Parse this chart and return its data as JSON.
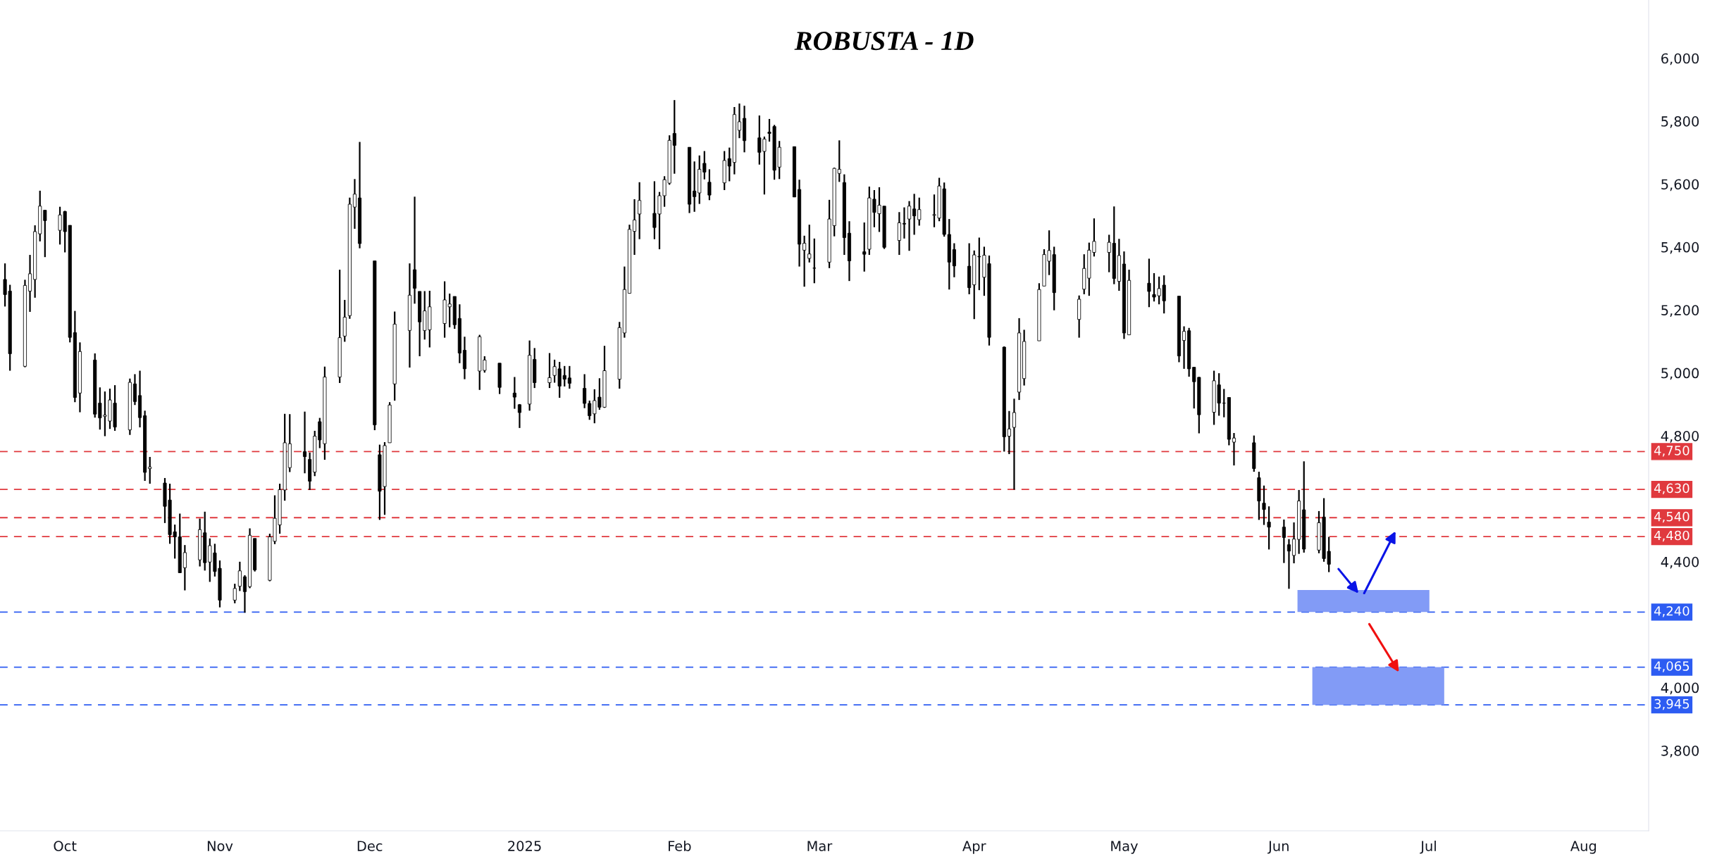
{
  "chart_data": {
    "type": "candlestick",
    "title": "ROBUSTA - 1D",
    "x": [
      "2024-09-19",
      "2024-09-20",
      "2024-09-23",
      "2024-09-24",
      "2024-09-25",
      "2024-09-26",
      "2024-09-27",
      "2024-09-30",
      "2024-10-01",
      "2024-10-02",
      "2024-10-03",
      "2024-10-04",
      "2024-10-07",
      "2024-10-08",
      "2024-10-09",
      "2024-10-10",
      "2024-10-11",
      "2024-10-14",
      "2024-10-15",
      "2024-10-16",
      "2024-10-17",
      "2024-10-18",
      "2024-10-21",
      "2024-10-22",
      "2024-10-23",
      "2024-10-24",
      "2024-10-25",
      "2024-10-28",
      "2024-10-29",
      "2024-10-30",
      "2024-10-31",
      "2024-11-01",
      "2024-11-04",
      "2024-11-05",
      "2024-11-06",
      "2024-11-07",
      "2024-11-08",
      "2024-11-11",
      "2024-11-12",
      "2024-11-13",
      "2024-11-14",
      "2024-11-15",
      "2024-11-18",
      "2024-11-19",
      "2024-11-20",
      "2024-11-21",
      "2024-11-22",
      "2024-11-25",
      "2024-11-26",
      "2024-11-27",
      "2024-11-28",
      "2024-11-29",
      "2024-12-02",
      "2024-12-03",
      "2024-12-04",
      "2024-12-05",
      "2024-12-06",
      "2024-12-09",
      "2024-12-10",
      "2024-12-11",
      "2024-12-12",
      "2024-12-13",
      "2024-12-16",
      "2024-12-17",
      "2024-12-18",
      "2024-12-19",
      "2024-12-20",
      "2024-12-23",
      "2024-12-24",
      "2024-12-27",
      "2024-12-30",
      "2024-12-31",
      "2025-01-02",
      "2025-01-03",
      "2025-01-06",
      "2025-01-07",
      "2025-01-08",
      "2025-01-09",
      "2025-01-10",
      "2025-01-13",
      "2025-01-14",
      "2025-01-15",
      "2025-01-16",
      "2025-01-17",
      "2025-01-20",
      "2025-01-21",
      "2025-01-22",
      "2025-01-23",
      "2025-01-24",
      "2025-01-27",
      "2025-01-28",
      "2025-01-29",
      "2025-01-30",
      "2025-01-31",
      "2025-02-03",
      "2025-02-04",
      "2025-02-05",
      "2025-02-06",
      "2025-02-07",
      "2025-02-10",
      "2025-02-11",
      "2025-02-12",
      "2025-02-13",
      "2025-02-14",
      "2025-02-17",
      "2025-02-18",
      "2025-02-19",
      "2025-02-20",
      "2025-02-21",
      "2025-02-24",
      "2025-02-25",
      "2025-02-26",
      "2025-02-27",
      "2025-02-28",
      "2025-03-03",
      "2025-03-04",
      "2025-03-05",
      "2025-03-06",
      "2025-03-07",
      "2025-03-10",
      "2025-03-11",
      "2025-03-12",
      "2025-03-13",
      "2025-03-14",
      "2025-03-17",
      "2025-03-18",
      "2025-03-19",
      "2025-03-20",
      "2025-03-21",
      "2025-03-24",
      "2025-03-25",
      "2025-03-26",
      "2025-03-27",
      "2025-03-28",
      "2025-03-31",
      "2025-04-01",
      "2025-04-02",
      "2025-04-03",
      "2025-04-04",
      "2025-04-07",
      "2025-04-08",
      "2025-04-09",
      "2025-04-10",
      "2025-04-11",
      "2025-04-14",
      "2025-04-15",
      "2025-04-16",
      "2025-04-17",
      "2025-04-22",
      "2025-04-23",
      "2025-04-24",
      "2025-04-25",
      "2025-04-28",
      "2025-04-29",
      "2025-04-30",
      "2025-05-01",
      "2025-05-02",
      "2025-05-06",
      "2025-05-07",
      "2025-05-08",
      "2025-05-09",
      "2025-05-12",
      "2025-05-13",
      "2025-05-14",
      "2025-05-15",
      "2025-05-16",
      "2025-05-19",
      "2025-05-20",
      "2025-05-21",
      "2025-05-22",
      "2025-05-23",
      "2025-05-27",
      "2025-05-28",
      "2025-05-29",
      "2025-05-30",
      "2025-06-02",
      "2025-06-03",
      "2025-06-04",
      "2025-06-05",
      "2025-06-06",
      "2025-06-09",
      "2025-06-10",
      "2025-06-11"
    ],
    "ohlc": [
      [
        5297,
        5348,
        5211,
        5249
      ],
      [
        5260,
        5280,
        5007,
        5061
      ],
      [
        5021,
        5296,
        5018,
        5278
      ],
      [
        5260,
        5375,
        5194,
        5315
      ],
      [
        5297,
        5469,
        5239,
        5449
      ],
      [
        5442,
        5579,
        5418,
        5530
      ],
      [
        5517,
        5518,
        5368,
        5484
      ],
      [
        5453,
        5528,
        5408,
        5502
      ],
      [
        5513,
        5515,
        5383,
        5449
      ],
      [
        5469,
        5469,
        5097,
        5113
      ],
      [
        5128,
        5197,
        4907,
        4922
      ],
      [
        4936,
        5097,
        4875,
        5068
      ],
      [
        5041,
        5062,
        4858,
        4869
      ],
      [
        4904,
        4954,
        4820,
        4857
      ],
      [
        4862,
        4941,
        4799,
        4866
      ],
      [
        4847,
        4950,
        4822,
        4914
      ],
      [
        4904,
        4961,
        4816,
        4828
      ],
      [
        4819,
        4982,
        4803,
        4970
      ],
      [
        4965,
        4996,
        4898,
        4909
      ],
      [
        4928,
        5007,
        4827,
        4858
      ],
      [
        4864,
        4880,
        4657,
        4684
      ],
      [
        4696,
        4733,
        4648,
        4701
      ],
      [
        4650,
        4666,
        4523,
        4576
      ],
      [
        4596,
        4648,
        4457,
        4486
      ],
      [
        4495,
        4518,
        4410,
        4479
      ],
      [
        4479,
        4553,
        4365,
        4365
      ],
      [
        4381,
        4453,
        4309,
        4429
      ],
      [
        4406,
        4537,
        4385,
        4502
      ],
      [
        4492,
        4559,
        4372,
        4397
      ],
      [
        4399,
        4474,
        4336,
        4451
      ],
      [
        4428,
        4457,
        4353,
        4369
      ],
      [
        4379,
        4404,
        4255,
        4278
      ],
      [
        4278,
        4330,
        4268,
        4315
      ],
      [
        4322,
        4400,
        4307,
        4371
      ],
      [
        4352,
        4357,
        4238,
        4305
      ],
      [
        4321,
        4506,
        4316,
        4484
      ],
      [
        4474,
        4474,
        4369,
        4374
      ],
      [
        4341,
        4489,
        4338,
        4479
      ],
      [
        4465,
        4611,
        4456,
        4538
      ],
      [
        4517,
        4648,
        4489,
        4629
      ],
      [
        4628,
        4870,
        4594,
        4778
      ],
      [
        4699,
        4869,
        4685,
        4775
      ],
      [
        4750,
        4877,
        4681,
        4734
      ],
      [
        4725,
        4747,
        4628,
        4656
      ],
      [
        4685,
        4816,
        4672,
        4799
      ],
      [
        4845,
        4857,
        4761,
        4787
      ],
      [
        4775,
        5020,
        4724,
        4987
      ],
      [
        4987,
        5328,
        4968,
        5112
      ],
      [
        5117,
        5232,
        5099,
        5177
      ],
      [
        5182,
        5557,
        5172,
        5536
      ],
      [
        5527,
        5616,
        5458,
        5568
      ],
      [
        5556,
        5734,
        5396,
        5411
      ],
      [
        5356,
        5356,
        4818,
        4835
      ],
      [
        4740,
        4772,
        4533,
        4624
      ],
      [
        4639,
        4780,
        4549,
        4769
      ],
      [
        4778,
        4907,
        4778,
        4898
      ],
      [
        4965,
        5195,
        4912,
        5155
      ],
      [
        5135,
        5348,
        5017,
        5247
      ],
      [
        5328,
        5560,
        5220,
        5269
      ],
      [
        5259,
        5259,
        5053,
        5162
      ],
      [
        5135,
        5260,
        5106,
        5197
      ],
      [
        5137,
        5261,
        5081,
        5210
      ],
      [
        5157,
        5291,
        5112,
        5232
      ],
      [
        5210,
        5252,
        5145,
        5219
      ],
      [
        5243,
        5243,
        5140,
        5153
      ],
      [
        5173,
        5218,
        5031,
        5063
      ],
      [
        5072,
        5115,
        4980,
        5013
      ],
      [
        5006,
        5121,
        4946,
        5115
      ],
      [
        5008,
        5053,
        5001,
        5041
      ],
      [
        5031,
        5031,
        4933,
        4954
      ],
      [
        4936,
        4987,
        4886,
        4923
      ],
      [
        4899,
        4901,
        4825,
        4874
      ],
      [
        4901,
        5103,
        4880,
        5056
      ],
      [
        5043,
        5079,
        4952,
        4969
      ],
      [
        4969,
        5063,
        4952,
        4985
      ],
      [
        4992,
        5042,
        4969,
        5020
      ],
      [
        5013,
        5035,
        4921,
        4958
      ],
      [
        4992,
        5022,
        4957,
        4980
      ],
      [
        4984,
        5022,
        4950,
        4967
      ],
      [
        4951,
        4996,
        4888,
        4903
      ],
      [
        4903,
        4912,
        4851,
        4864
      ],
      [
        4870,
        4948,
        4840,
        4912
      ],
      [
        4923,
        4983,
        4883,
        4891
      ],
      [
        4891,
        5086,
        4889,
        5007
      ],
      [
        4980,
        5162,
        4950,
        5144
      ],
      [
        5127,
        5338,
        5112,
        5265
      ],
      [
        5253,
        5471,
        5252,
        5456
      ],
      [
        5450,
        5552,
        5375,
        5486
      ],
      [
        5505,
        5606,
        5425,
        5548
      ],
      [
        5507,
        5609,
        5425,
        5462
      ],
      [
        5505,
        5575,
        5393,
        5563
      ],
      [
        5563,
        5625,
        5528,
        5614
      ],
      [
        5603,
        5755,
        5598,
        5739
      ],
      [
        5761,
        5867,
        5633,
        5723
      ],
      [
        5717,
        5717,
        5508,
        5536
      ],
      [
        5578,
        5672,
        5512,
        5560
      ],
      [
        5572,
        5691,
        5537,
        5647
      ],
      [
        5666,
        5705,
        5615,
        5638
      ],
      [
        5606,
        5647,
        5549,
        5565
      ],
      [
        5604,
        5705,
        5581,
        5675
      ],
      [
        5681,
        5716,
        5609,
        5657
      ],
      [
        5669,
        5845,
        5631,
        5821
      ],
      [
        5771,
        5856,
        5746,
        5798
      ],
      [
        5809,
        5849,
        5701,
        5738
      ],
      [
        5747,
        5818,
        5662,
        5701
      ],
      [
        5704,
        5751,
        5567,
        5743
      ],
      [
        5765,
        5807,
        5735,
        5761
      ],
      [
        5783,
        5788,
        5614,
        5644
      ],
      [
        5654,
        5737,
        5616,
        5717
      ],
      [
        5719,
        5719,
        5559,
        5559
      ],
      [
        5583,
        5614,
        5338,
        5409
      ],
      [
        5390,
        5436,
        5274,
        5412
      ],
      [
        5364,
        5471,
        5351,
        5378
      ],
      [
        5333,
        5427,
        5285,
        5333
      ],
      [
        5352,
        5550,
        5333,
        5489
      ],
      [
        5468,
        5652,
        5434,
        5650
      ],
      [
        5634,
        5739,
        5607,
        5647
      ],
      [
        5605,
        5631,
        5375,
        5430
      ],
      [
        5444,
        5482,
        5292,
        5356
      ],
      [
        5385,
        5478,
        5322,
        5377
      ],
      [
        5393,
        5592,
        5375,
        5556
      ],
      [
        5552,
        5581,
        5463,
        5510
      ],
      [
        5506,
        5590,
        5448,
        5533
      ],
      [
        5530,
        5530,
        5394,
        5399
      ],
      [
        5421,
        5511,
        5375,
        5477
      ],
      [
        5475,
        5526,
        5427,
        5473
      ],
      [
        5489,
        5546,
        5388,
        5530
      ],
      [
        5521,
        5569,
        5439,
        5499
      ],
      [
        5487,
        5557,
        5468,
        5519
      ],
      [
        5501,
        5567,
        5463,
        5503
      ],
      [
        5492,
        5620,
        5482,
        5594
      ],
      [
        5585,
        5605,
        5433,
        5440
      ],
      [
        5440,
        5489,
        5265,
        5352
      ],
      [
        5392,
        5412,
        5304,
        5340
      ],
      [
        5339,
        5412,
        5250,
        5271
      ],
      [
        5280,
        5389,
        5171,
        5375
      ],
      [
        5370,
        5430,
        5263,
        5369
      ],
      [
        5304,
        5401,
        5245,
        5374
      ],
      [
        5347,
        5373,
        5087,
        5113
      ],
      [
        5082,
        5084,
        4750,
        4797
      ],
      [
        4799,
        4879,
        4742,
        4822
      ],
      [
        4827,
        4918,
        4629,
        4874
      ],
      [
        4939,
        5174,
        4914,
        5127
      ],
      [
        4982,
        5137,
        4960,
        5100
      ],
      [
        5102,
        5285,
        5102,
        5265
      ],
      [
        5276,
        5393,
        5276,
        5376
      ],
      [
        5355,
        5453,
        5311,
        5389
      ],
      [
        5376,
        5401,
        5199,
        5255
      ],
      [
        5170,
        5246,
        5112,
        5234
      ],
      [
        5266,
        5377,
        5250,
        5332
      ],
      [
        5301,
        5414,
        5245,
        5390
      ],
      [
        5383,
        5491,
        5370,
        5418
      ],
      [
        5383,
        5439,
        5320,
        5415
      ],
      [
        5412,
        5529,
        5282,
        5300
      ],
      [
        5291,
        5426,
        5261,
        5373
      ],
      [
        5346,
        5386,
        5108,
        5127
      ],
      [
        5121,
        5328,
        5121,
        5294
      ],
      [
        5285,
        5363,
        5209,
        5259
      ],
      [
        5249,
        5317,
        5227,
        5241
      ],
      [
        5245,
        5306,
        5218,
        5268
      ],
      [
        5279,
        5310,
        5189,
        5229
      ],
      [
        5244,
        5244,
        5034,
        5054
      ],
      [
        5103,
        5148,
        5013,
        5132
      ],
      [
        5134,
        5143,
        4988,
        5013
      ],
      [
        5018,
        5018,
        4887,
        4972
      ],
      [
        4986,
        4987,
        4808,
        4867
      ],
      [
        4875,
        5007,
        4835,
        4975
      ],
      [
        4962,
        4999,
        4864,
        4904
      ],
      [
        4904,
        4949,
        4859,
        4904
      ],
      [
        4922,
        4922,
        4770,
        4789
      ],
      [
        4780,
        4809,
        4706,
        4793
      ],
      [
        4778,
        4801,
        4686,
        4696
      ],
      [
        4667,
        4686,
        4533,
        4593
      ],
      [
        4586,
        4642,
        4517,
        4566
      ],
      [
        4526,
        4576,
        4439,
        4510
      ],
      [
        4510,
        4534,
        4396,
        4477
      ],
      [
        4454,
        4472,
        4314,
        4434
      ],
      [
        4420,
        4525,
        4395,
        4472
      ],
      [
        4471,
        4628,
        4425,
        4593
      ],
      [
        4565,
        4719,
        4429,
        4440
      ],
      [
        4437,
        4561,
        4427,
        4524
      ],
      [
        4542,
        4602,
        4400,
        4410
      ],
      [
        4433,
        4479,
        4367,
        4392
      ]
    ],
    "color": "#000000",
    "xlim": [
      "2024-09-18",
      "2025-08-14"
    ],
    "xticks": [
      {
        "value": "2024-10-01",
        "label": "Oct"
      },
      {
        "value": "2024-11-01",
        "label": "Nov"
      },
      {
        "value": "2024-12-01",
        "label": "Dec"
      },
      {
        "value": "2025-01-01",
        "label": "2025"
      },
      {
        "value": "2025-02-01",
        "label": "Feb"
      },
      {
        "value": "2025-03-01",
        "label": "Mar"
      },
      {
        "value": "2025-04-01",
        "label": "Apr"
      },
      {
        "value": "2025-05-01",
        "label": "May"
      },
      {
        "value": "2025-06-01",
        "label": "Jun"
      },
      {
        "value": "2025-07-01",
        "label": "Jul"
      },
      {
        "value": "2025-08-01",
        "label": "Aug"
      }
    ],
    "ylim": [
      3545,
      6185
    ],
    "yticks": [
      {
        "value": 3800,
        "label": "3,800"
      },
      {
        "value": 4000,
        "label": "4,000"
      },
      {
        "value": 4400,
        "label": "4,400"
      },
      {
        "value": 4800,
        "label": "4,800"
      },
      {
        "value": 5000,
        "label": "5,000"
      },
      {
        "value": 5200,
        "label": "5,200"
      },
      {
        "value": 5400,
        "label": "5,400"
      },
      {
        "value": 5600,
        "label": "5,600"
      },
      {
        "value": 5800,
        "label": "5,800"
      },
      {
        "value": 6000,
        "label": "6,000"
      }
    ],
    "ref_lines": [
      {
        "axis": "y",
        "value": 4750,
        "label": "4,750",
        "color": "#e0393e",
        "line_style": "dashed"
      },
      {
        "axis": "y",
        "value": 4630,
        "label": "4,630",
        "color": "#e0393e",
        "line_style": "dashed"
      },
      {
        "axis": "y",
        "value": 4540,
        "label": "4,540",
        "color": "#e0393e",
        "line_style": "dashed"
      },
      {
        "axis": "y",
        "value": 4480,
        "label": "4,480",
        "color": "#e0393e",
        "line_style": "dashed"
      },
      {
        "axis": "y",
        "value": 4240,
        "label": "4,240",
        "color": "#2d5cf2",
        "line_style": "dashed"
      },
      {
        "axis": "y",
        "value": 4065,
        "label": "4,065",
        "color": "#2d5cf2",
        "line_style": "dashed"
      },
      {
        "axis": "y",
        "value": 3945,
        "label": "3,945",
        "color": "#2d5cf2",
        "line_style": "dashed"
      }
    ],
    "bands": [
      {
        "axis": "y",
        "from": 4240,
        "to": 4310,
        "color": "#7b96f5"
      },
      {
        "axis": "y",
        "from": 3945,
        "to": 4065,
        "color": "#7b96f5"
      }
    ],
    "grid": false
  }
}
